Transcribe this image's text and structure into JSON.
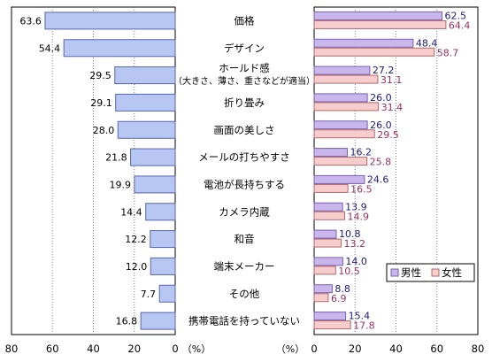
{
  "chart_data": [
    {
      "type": "bar",
      "orientation": "horizontal",
      "direction": "reversed",
      "categories": [
        "価格",
        "デザイン",
        "ホールド感（大きさ、薄さ、重さなどが適当）",
        "折り畳み",
        "画面の美しさ",
        "メールの打ちやすさ",
        "電池が長持ちする",
        "カメラ内蔵",
        "和音",
        "端末メーカー",
        "その他",
        "携帯電話を持っていない"
      ],
      "series": [
        {
          "values": [
            63.6,
            54.4,
            29.5,
            29.1,
            28.0,
            21.8,
            19.9,
            14.4,
            12.2,
            12.0,
            7.7,
            16.8
          ]
        }
      ],
      "xlim": [
        0,
        80
      ],
      "xticks": [
        "80",
        "60",
        "40",
        "20",
        "0"
      ],
      "unit_label": "（%）",
      "grid": true,
      "colors": {
        "bar": "#b8c6f2",
        "bar_edge": "#5566b0"
      }
    },
    {
      "type": "bar",
      "orientation": "horizontal",
      "categories": [
        "価格",
        "デザイン",
        "ホールド感（大きさ、薄さ、重さなどが適当）",
        "折り畳み",
        "画面の美しさ",
        "メールの打ちやすさ",
        "電池が長持ちする",
        "カメラ内蔵",
        "和音",
        "端末メーカー",
        "その他",
        "携帯電話を持っていない"
      ],
      "series": [
        {
          "name": "男性",
          "values": [
            62.5,
            48.4,
            27.2,
            26.0,
            26.0,
            16.2,
            24.6,
            13.9,
            10.8,
            14.0,
            8.8,
            15.4
          ]
        },
        {
          "name": "女性",
          "values": [
            64.4,
            58.7,
            31.1,
            31.4,
            29.5,
            25.8,
            16.5,
            14.9,
            13.2,
            10.5,
            6.9,
            17.8
          ]
        }
      ],
      "xlim": [
        0,
        80
      ],
      "xticks": [
        "0",
        "20",
        "40",
        "60",
        "80"
      ],
      "unit_label": "（%）",
      "grid": true,
      "legend": "bottom-right",
      "colors": {
        "male": "#c8b6ec",
        "male_edge": "#7a5fb0",
        "female": "#f6cccc",
        "female_edge": "#b06a6a",
        "male_label": "#1a1a7a",
        "female_label": "#9a3060"
      }
    }
  ],
  "labels": {
    "cat_lines": [
      [
        "価格"
      ],
      [
        "デザイン"
      ],
      [
        "ホールド感",
        "（大きさ、薄さ、重さなどが適当）"
      ],
      [
        "折り畳み"
      ],
      [
        "画面の美しさ"
      ],
      [
        "メールの打ちやすさ"
      ],
      [
        "電池が長持ちする"
      ],
      [
        "カメラ内蔵"
      ],
      [
        "和音"
      ],
      [
        "端末メーカー"
      ],
      [
        "その他"
      ],
      [
        "携帯電話を持っていない"
      ]
    ]
  }
}
